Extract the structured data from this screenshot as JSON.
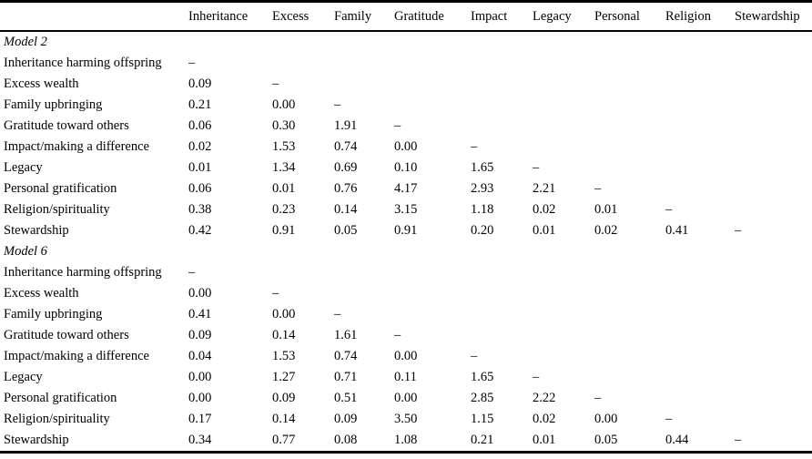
{
  "table": {
    "corner_label": "",
    "columns": [
      "Inheritance",
      "Excess",
      "Family",
      "Gratitude",
      "Impact",
      "Legacy",
      "Personal",
      "Religion",
      "Stewardship"
    ],
    "sections": [
      {
        "label": "Model 2",
        "rows": [
          {
            "label": "Inheritance harming offspring",
            "values": [
              "–"
            ]
          },
          {
            "label": "Excess wealth",
            "values": [
              "0.09",
              "–"
            ]
          },
          {
            "label": "Family upbringing",
            "values": [
              "0.21",
              "0.00",
              "–"
            ]
          },
          {
            "label": "Gratitude toward others",
            "values": [
              "0.06",
              "0.30",
              "1.91",
              "–"
            ]
          },
          {
            "label": "Impact/making a difference",
            "values": [
              "0.02",
              "1.53",
              "0.74",
              "0.00",
              "–"
            ]
          },
          {
            "label": "Legacy",
            "values": [
              "0.01",
              "1.34",
              "0.69",
              "0.10",
              "1.65",
              "–"
            ]
          },
          {
            "label": "Personal gratification",
            "values": [
              "0.06",
              "0.01",
              "0.76",
              "4.17",
              "2.93",
              "2.21",
              "–"
            ]
          },
          {
            "label": "Religion/spirituality",
            "values": [
              "0.38",
              "0.23",
              "0.14",
              "3.15",
              "1.18",
              "0.02",
              "0.01",
              "–"
            ]
          },
          {
            "label": "Stewardship",
            "values": [
              "0.42",
              "0.91",
              "0.05",
              "0.91",
              "0.20",
              "0.01",
              "0.02",
              "0.41",
              "–"
            ]
          }
        ]
      },
      {
        "label": "Model 6",
        "rows": [
          {
            "label": "Inheritance harming offspring",
            "values": [
              "–"
            ]
          },
          {
            "label": "Excess wealth",
            "values": [
              "0.00",
              "–"
            ]
          },
          {
            "label": "Family upbringing",
            "values": [
              "0.41",
              "0.00",
              "–"
            ]
          },
          {
            "label": "Gratitude toward others",
            "values": [
              "0.09",
              "0.14",
              "1.61",
              "–"
            ]
          },
          {
            "label": "Impact/making a difference",
            "values": [
              "0.04",
              "1.53",
              "0.74",
              "0.00",
              "–"
            ]
          },
          {
            "label": "Legacy",
            "values": [
              "0.00",
              "1.27",
              "0.71",
              "0.11",
              "1.65",
              "–"
            ]
          },
          {
            "label": "Personal gratification",
            "values": [
              "0.00",
              "0.09",
              "0.51",
              "0.00",
              "2.85",
              "2.22",
              "–"
            ]
          },
          {
            "label": "Religion/spirituality",
            "values": [
              "0.17",
              "0.14",
              "0.09",
              "3.50",
              "1.15",
              "0.02",
              "0.00",
              "–"
            ]
          },
          {
            "label": "Stewardship",
            "values": [
              "0.34",
              "0.77",
              "0.08",
              "1.08",
              "0.21",
              "0.01",
              "0.05",
              "0.44",
              "–"
            ]
          }
        ]
      }
    ]
  },
  "chart_data": {
    "type": "table",
    "title": "",
    "categories": [
      "Inheritance harming offspring",
      "Excess wealth",
      "Family upbringing",
      "Gratitude toward others",
      "Impact/making a difference",
      "Legacy",
      "Personal gratification",
      "Religion/spirituality",
      "Stewardship"
    ],
    "columns": [
      "Inheritance",
      "Excess",
      "Family",
      "Gratitude",
      "Impact",
      "Legacy",
      "Personal",
      "Religion",
      "Stewardship"
    ],
    "series": [
      {
        "name": "Model 2",
        "matrix_lower_triangle": [
          [
            null
          ],
          [
            0.09,
            null
          ],
          [
            0.21,
            0.0,
            null
          ],
          [
            0.06,
            0.3,
            1.91,
            null
          ],
          [
            0.02,
            1.53,
            0.74,
            0.0,
            null
          ],
          [
            0.01,
            1.34,
            0.69,
            0.1,
            1.65,
            null
          ],
          [
            0.06,
            0.01,
            0.76,
            4.17,
            2.93,
            2.21,
            null
          ],
          [
            0.38,
            0.23,
            0.14,
            3.15,
            1.18,
            0.02,
            0.01,
            null
          ],
          [
            0.42,
            0.91,
            0.05,
            0.91,
            0.2,
            0.01,
            0.02,
            0.41,
            null
          ]
        ]
      },
      {
        "name": "Model 6",
        "matrix_lower_triangle": [
          [
            null
          ],
          [
            0.0,
            null
          ],
          [
            0.41,
            0.0,
            null
          ],
          [
            0.09,
            0.14,
            1.61,
            null
          ],
          [
            0.04,
            1.53,
            0.74,
            0.0,
            null
          ],
          [
            0.0,
            1.27,
            0.71,
            0.11,
            1.65,
            null
          ],
          [
            0.0,
            0.09,
            0.51,
            0.0,
            2.85,
            2.22,
            null
          ],
          [
            0.17,
            0.14,
            0.09,
            3.5,
            1.15,
            0.02,
            0.0,
            null
          ],
          [
            0.34,
            0.77,
            0.08,
            1.08,
            0.21,
            0.01,
            0.05,
            0.44,
            null
          ]
        ]
      }
    ]
  }
}
